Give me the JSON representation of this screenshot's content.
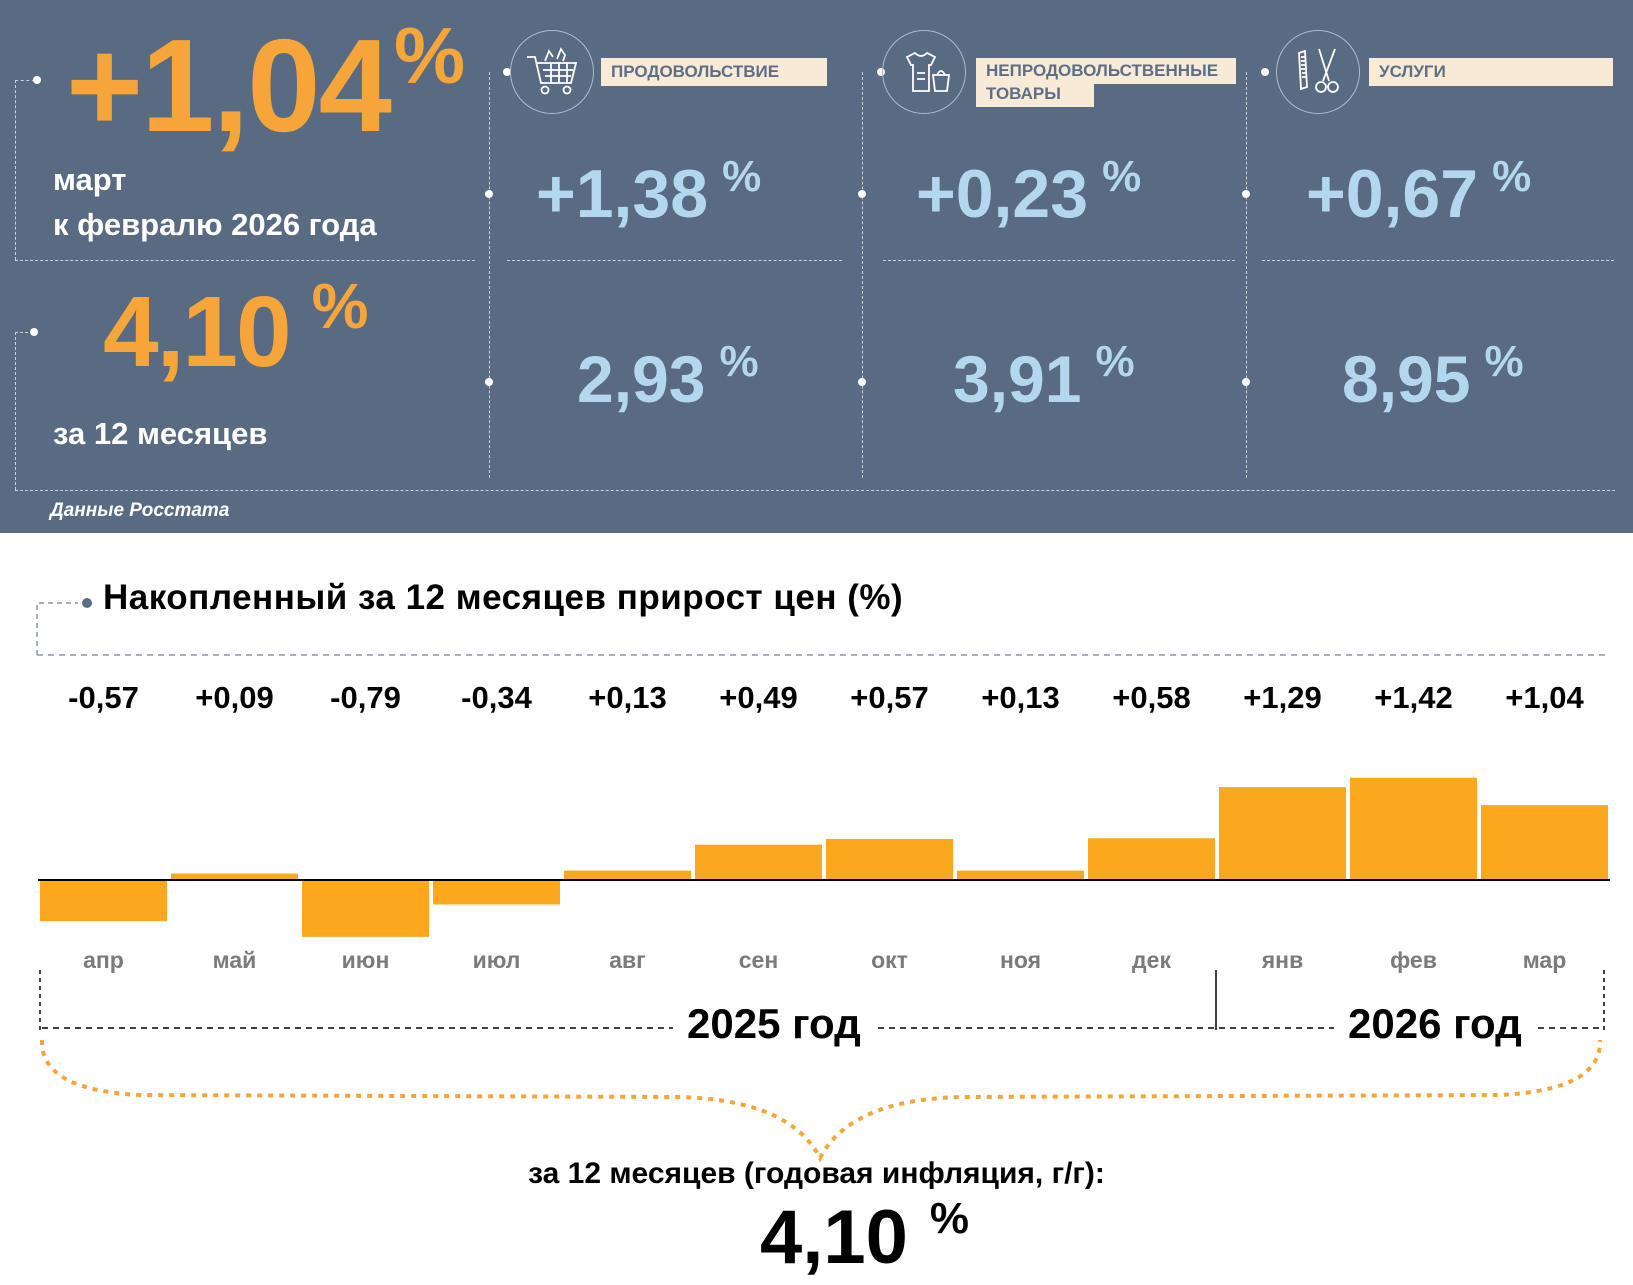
{
  "headline": {
    "monthly_value": "+1,04",
    "monthly_pct": "%",
    "monthly_caption_line1": "март",
    "monthly_caption_line2": "к февралю 2026 года",
    "annual_value": "4,10",
    "annual_pct": "%",
    "annual_caption": "за 12 месяцев",
    "source": "Данные Росстата"
  },
  "categories": [
    {
      "name": "ПРОДОВОЛЬСТВИЕ",
      "icon": "shopping-cart-icon",
      "monthly": "+1,38",
      "annual": "2,93",
      "pct": "%"
    },
    {
      "name_line1": "НЕПРОДОВОЛЬСТВЕННЫЕ",
      "name_line2": "ТОВАРЫ",
      "icon": "clothing-icon",
      "monthly": "+0,23",
      "annual": "3,91",
      "pct": "%"
    },
    {
      "name": "УСЛУГИ",
      "icon": "scissors-comb-icon",
      "monthly": "+0,67",
      "annual": "8,95",
      "pct": "%"
    }
  ],
  "chart_data": {
    "type": "bar",
    "title": "Накопленный за 12 месяцев прирост цен (%)",
    "categories": [
      "апр",
      "май",
      "июн",
      "июл",
      "авг",
      "сен",
      "окт",
      "ноя",
      "дек",
      "янв",
      "фев",
      "мар"
    ],
    "values": [
      -0.57,
      0.09,
      -0.79,
      -0.34,
      0.13,
      0.49,
      0.57,
      0.13,
      0.58,
      1.29,
      1.42,
      1.04
    ],
    "value_labels": [
      "-0,57",
      "+0,09",
      "-0,79",
      "-0,34",
      "+0,13",
      "+0,49",
      "+0,57",
      "+0,13",
      "+0,58",
      "+1,29",
      "+1,42",
      "+1,04"
    ],
    "years": [
      {
        "label": "2025 год",
        "from": "апр",
        "to": "дек"
      },
      {
        "label": "2026 год",
        "from": "янв",
        "to": "мар"
      }
    ],
    "xlabel": "",
    "ylabel": "",
    "bar_color": "#fca81f"
  },
  "summary": {
    "caption": "за 12 месяцев (годовая инфляция, г/г):",
    "value": "4,10",
    "pct": "%"
  },
  "colors": {
    "panel_bg": "#596b82",
    "orange": "#f5a53a",
    "light_blue": "#b3d8ee",
    "label_bg": "#f7ead7"
  }
}
